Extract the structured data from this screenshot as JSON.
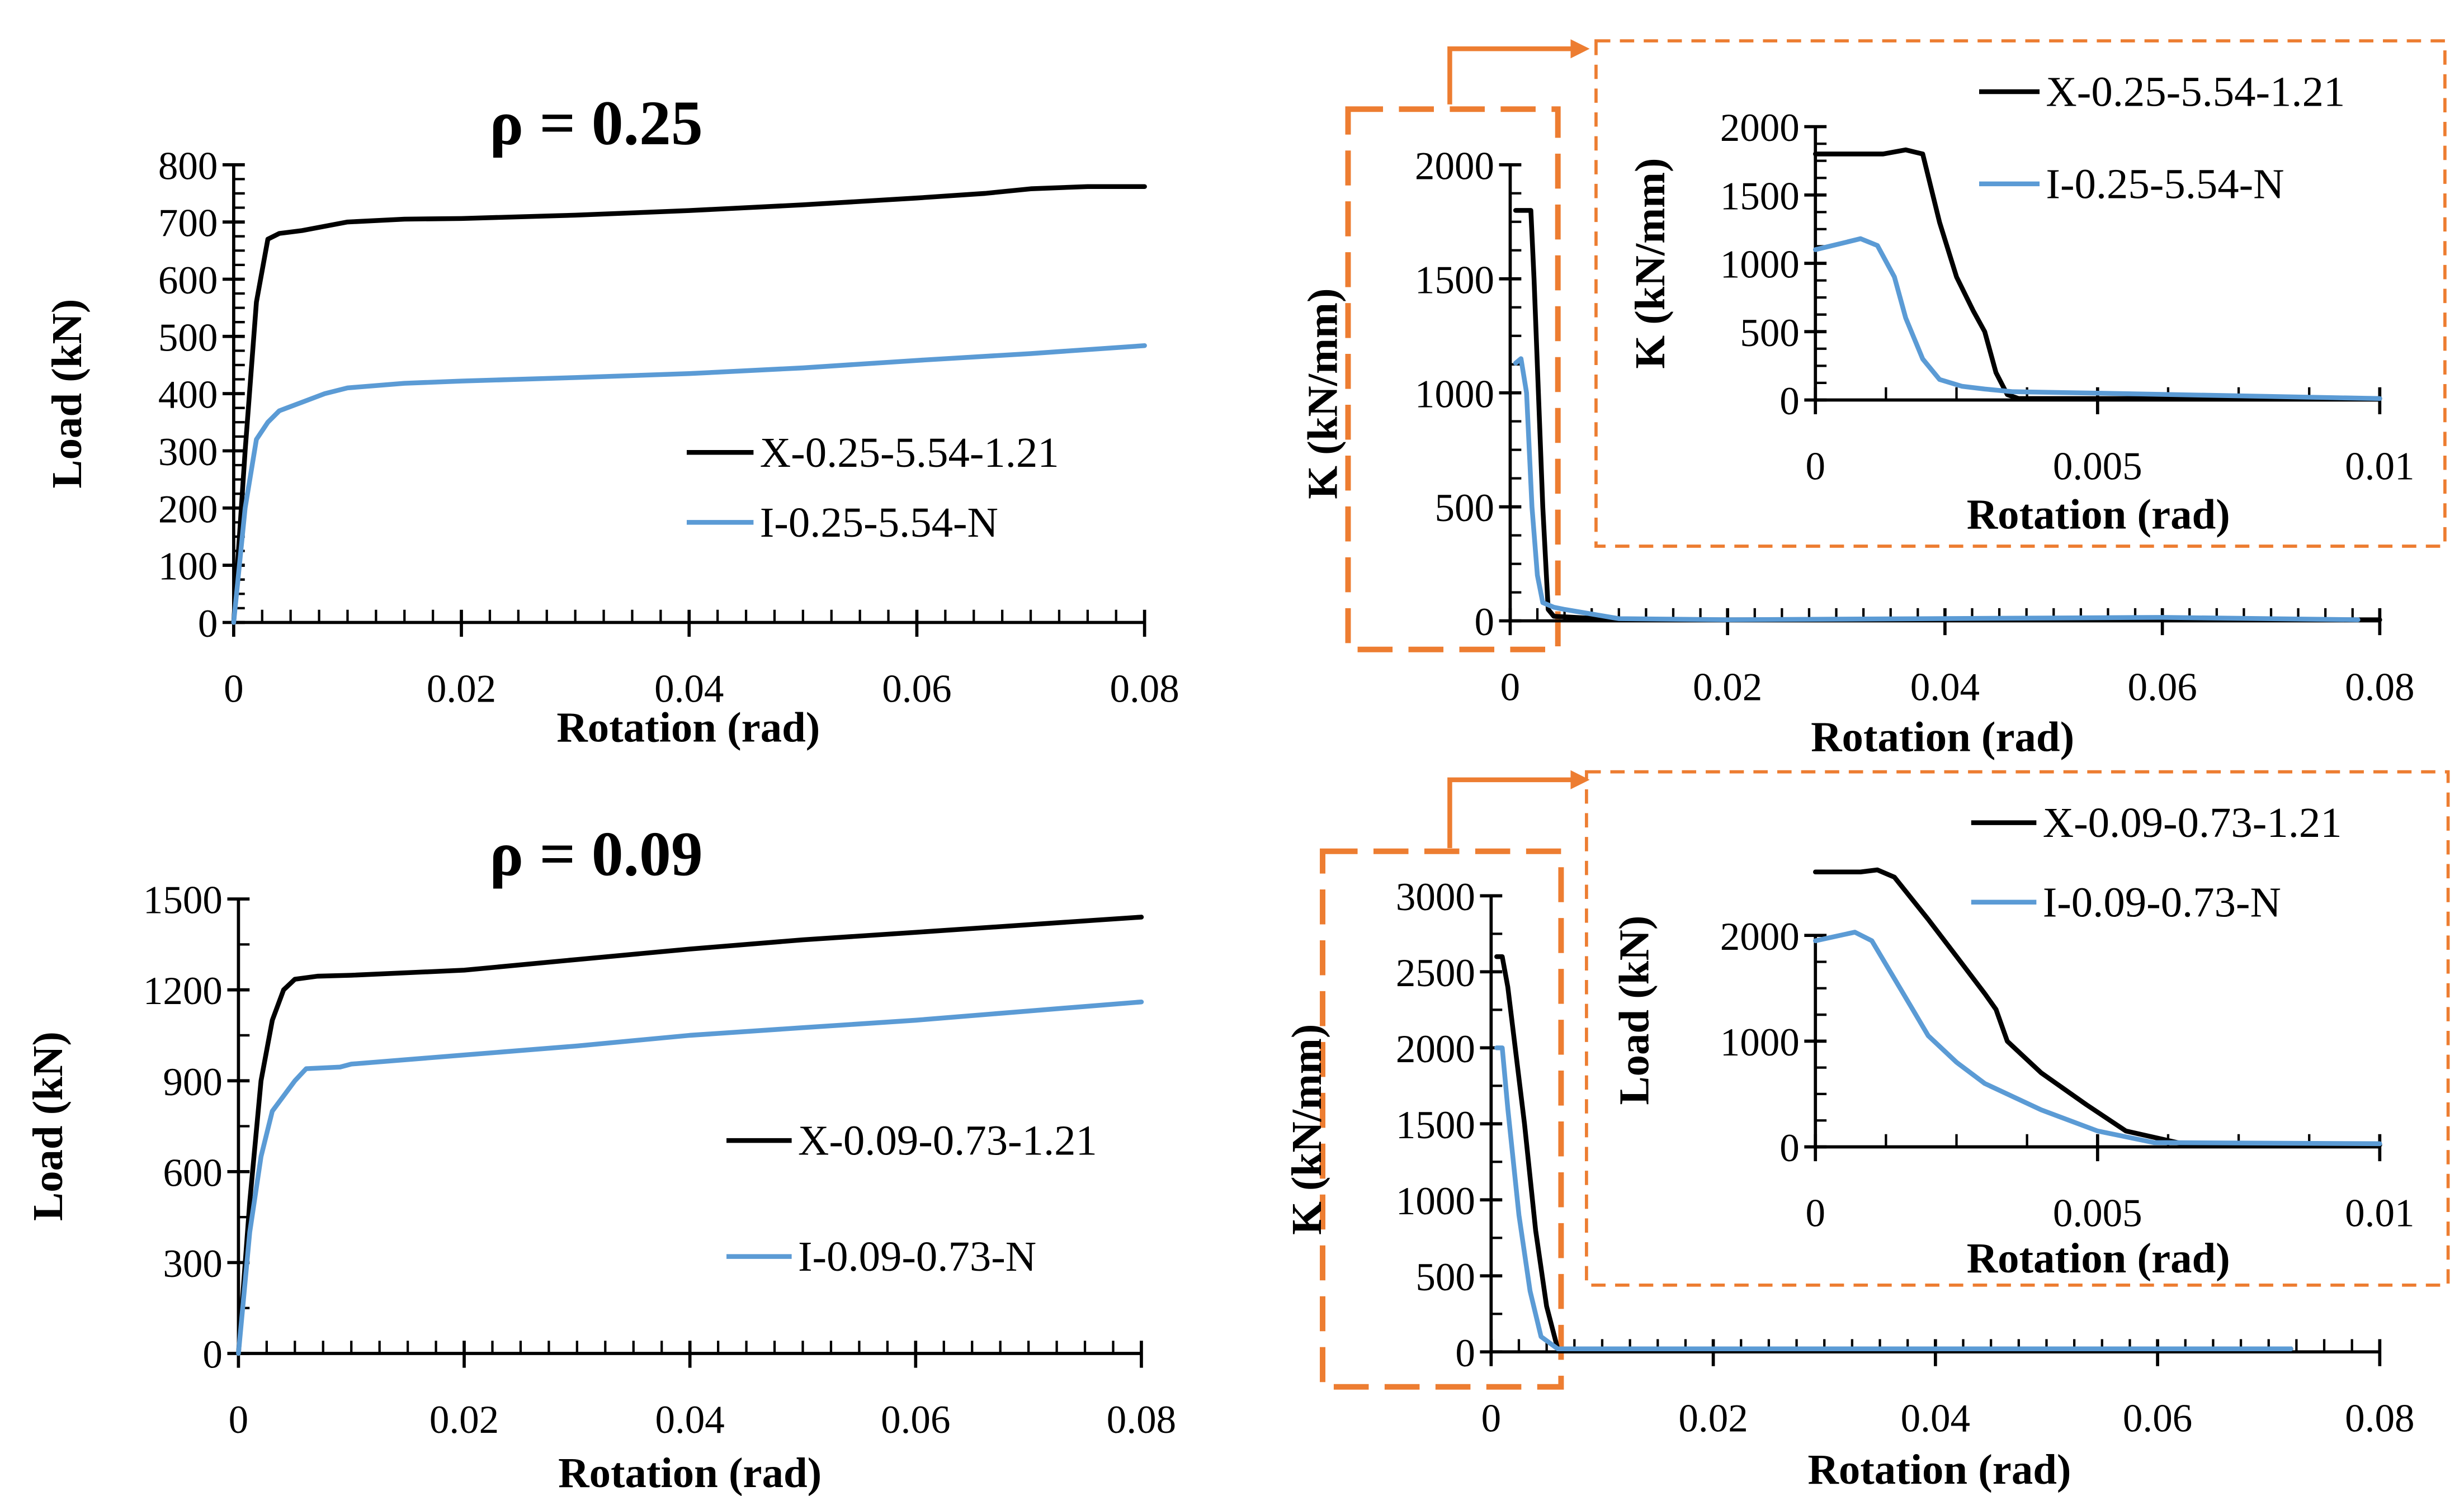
{
  "colors": {
    "black_series": "#000000",
    "blue_series": "#5b9bd5",
    "highlight": "#ed7d31"
  },
  "chart_data": [
    {
      "id": "A",
      "type": "line",
      "title": "ρ = 0.25",
      "xlabel": "Rotation (rad)",
      "ylabel": "Load (kN)",
      "xlim": [
        0,
        0.08
      ],
      "ylim": [
        0,
        800
      ],
      "xticks": [
        0,
        0.02,
        0.04,
        0.06,
        0.08
      ],
      "xtick_labels": [
        "0",
        "0.02",
        "0.04",
        "0.06",
        "0.08"
      ],
      "yticks": [
        0,
        100,
        200,
        300,
        400,
        500,
        600,
        700,
        800
      ],
      "ytick_labels": [
        "0",
        "100",
        "200",
        "300",
        "400",
        "500",
        "600",
        "700",
        "800"
      ],
      "legend": "center-right",
      "series": [
        {
          "name": "X-0.25-5.54-1.21",
          "color": "#000000",
          "x": [
            0,
            0.001,
            0.002,
            0.003,
            0.004,
            0.006,
            0.01,
            0.015,
            0.02,
            0.03,
            0.04,
            0.05,
            0.06,
            0.066,
            0.07,
            0.075,
            0.08
          ],
          "y": [
            0,
            300,
            560,
            670,
            680,
            685,
            700,
            705,
            706,
            712,
            720,
            730,
            742,
            750,
            758,
            762,
            762
          ]
        },
        {
          "name": "I-0.25-5.54-N",
          "color": "#5b9bd5",
          "x": [
            0,
            0.001,
            0.002,
            0.003,
            0.004,
            0.006,
            0.008,
            0.01,
            0.015,
            0.02,
            0.03,
            0.04,
            0.05,
            0.06,
            0.07,
            0.08
          ],
          "y": [
            0,
            200,
            320,
            350,
            370,
            385,
            400,
            410,
            418,
            422,
            428,
            435,
            445,
            458,
            470,
            484
          ]
        }
      ]
    },
    {
      "id": "B",
      "type": "line",
      "xlabel": "Rotation (rad)",
      "ylabel": "K (kN/mm)",
      "xlim": [
        0,
        0.08
      ],
      "ylim": [
        0,
        2000
      ],
      "xticks": [
        0,
        0.02,
        0.04,
        0.06,
        0.08
      ],
      "xtick_labels": [
        "0",
        "0.02",
        "0.04",
        "0.06",
        "0.08"
      ],
      "yticks": [
        0,
        500,
        1000,
        1500,
        2000
      ],
      "ytick_labels": [
        "0",
        "500",
        "1000",
        "1500",
        "2000"
      ],
      "series": [
        {
          "name": "X-0.25-5.54-1.21",
          "color": "#000000",
          "x": [
            0.0005,
            0.0019,
            0.0022,
            0.003,
            0.0035,
            0.004,
            0.01,
            0.08
          ],
          "y": [
            1800,
            1800,
            1500,
            500,
            50,
            20,
            5,
            5
          ]
        },
        {
          "name": "I-0.25-5.54-N",
          "color": "#5b9bd5",
          "x": [
            0.0005,
            0.001,
            0.0015,
            0.002,
            0.0025,
            0.003,
            0.004,
            0.005,
            0.01,
            0.02,
            0.06,
            0.078
          ],
          "y": [
            1130,
            1150,
            1000,
            500,
            200,
            80,
            60,
            50,
            10,
            5,
            15,
            5
          ]
        }
      ]
    },
    {
      "id": "B-inset",
      "type": "line",
      "xlabel": "Rotation (rad)",
      "ylabel": "K (kN/mm)",
      "xlim": [
        0,
        0.01
      ],
      "ylim": [
        0,
        2000
      ],
      "xticks": [
        0,
        0.005,
        0.01
      ],
      "xtick_labels": [
        "0",
        "0.005",
        "0.01"
      ],
      "yticks": [
        0,
        500,
        1000,
        1500,
        2000
      ],
      "ytick_labels": [
        "0",
        "500",
        "1000",
        "1500",
        "2000"
      ],
      "legend": "top-right",
      "series": [
        {
          "name": "X-0.25-5.54-1.21",
          "color": "#000000",
          "x": [
            0,
            0.0012,
            0.0016,
            0.0019,
            0.0022,
            0.0025,
            0.0028,
            0.003,
            0.0032,
            0.0034,
            0.0036,
            0.01
          ],
          "y": [
            1800,
            1800,
            1830,
            1800,
            1300,
            900,
            650,
            500,
            200,
            40,
            10,
            10
          ]
        },
        {
          "name": "I-0.25-5.54-N",
          "color": "#5b9bd5",
          "x": [
            0,
            0.0005,
            0.0008,
            0.0011,
            0.0014,
            0.0016,
            0.0019,
            0.0022,
            0.0026,
            0.003,
            0.0035,
            0.005,
            0.01
          ],
          "y": [
            1100,
            1150,
            1180,
            1130,
            900,
            600,
            300,
            150,
            100,
            80,
            60,
            50,
            10
          ]
        }
      ]
    },
    {
      "id": "C",
      "type": "line",
      "title": "ρ = 0.09",
      "xlabel": "Rotation (rad)",
      "ylabel": "Load (kN)",
      "xlim": [
        0,
        0.08
      ],
      "ylim": [
        0,
        1500
      ],
      "xticks": [
        0,
        0.02,
        0.04,
        0.06,
        0.08
      ],
      "xtick_labels": [
        "0",
        "0.02",
        "0.04",
        "0.06",
        "0.08"
      ],
      "yticks": [
        0,
        300,
        600,
        900,
        1200,
        1500
      ],
      "ytick_labels": [
        "0",
        "300",
        "600",
        "900",
        "1200",
        "1500"
      ],
      "legend": "bottom-right",
      "series": [
        {
          "name": "X-0.09-0.73-1.21",
          "color": "#000000",
          "x": [
            0,
            0.001,
            0.002,
            0.003,
            0.004,
            0.005,
            0.007,
            0.01,
            0.02,
            0.03,
            0.04,
            0.05,
            0.06,
            0.07,
            0.08
          ],
          "y": [
            0,
            500,
            900,
            1100,
            1200,
            1235,
            1245,
            1248,
            1265,
            1300,
            1335,
            1365,
            1390,
            1415,
            1440
          ]
        },
        {
          "name": "I-0.09-0.73-N",
          "color": "#5b9bd5",
          "x": [
            0,
            0.001,
            0.002,
            0.003,
            0.005,
            0.006,
            0.009,
            0.01,
            0.02,
            0.03,
            0.04,
            0.05,
            0.06,
            0.07,
            0.08
          ],
          "y": [
            0,
            400,
            650,
            800,
            900,
            940,
            945,
            955,
            985,
            1015,
            1050,
            1075,
            1100,
            1130,
            1160
          ]
        }
      ]
    },
    {
      "id": "D",
      "type": "line",
      "xlabel": "Rotation (rad)",
      "ylabel": "K (kN/mm)",
      "xlim": [
        0,
        0.08
      ],
      "ylim": [
        0,
        3000
      ],
      "xticks": [
        0,
        0.02,
        0.04,
        0.06,
        0.08
      ],
      "xtick_labels": [
        "0",
        "0.02",
        "0.04",
        "0.06",
        "0.08"
      ],
      "yticks": [
        0,
        500,
        1000,
        1500,
        2000,
        2500,
        3000
      ],
      "ytick_labels": [
        "0",
        "500",
        "1000",
        "1500",
        "2000",
        "2500",
        "3000"
      ],
      "series": [
        {
          "name": "X-0.09-0.73-1.21",
          "color": "#000000",
          "x": [
            0.0005,
            0.001,
            0.0015,
            0.003,
            0.004,
            0.005,
            0.006,
            0.01,
            0.072
          ],
          "y": [
            2600,
            2600,
            2400,
            1500,
            800,
            300,
            20,
            20,
            20
          ]
        },
        {
          "name": "I-0.09-0.73-N",
          "color": "#5b9bd5",
          "x": [
            0.0005,
            0.001,
            0.0015,
            0.0025,
            0.0035,
            0.0045,
            0.006,
            0.072
          ],
          "y": [
            2000,
            2000,
            1600,
            900,
            400,
            100,
            20,
            20
          ]
        }
      ]
    },
    {
      "id": "D-inset",
      "type": "line",
      "xlabel": "Rotation (rad)",
      "ylabel": "Load (kN)",
      "xlim": [
        0,
        0.01
      ],
      "ylim": [
        0,
        2600
      ],
      "xticks": [
        0,
        0.005,
        0.01
      ],
      "xtick_labels": [
        "0",
        "0.005",
        "0.01"
      ],
      "yticks": [
        0,
        1000,
        2000
      ],
      "ytick_labels": [
        "0",
        "1000",
        "2000"
      ],
      "legend": "top-right",
      "series": [
        {
          "name": "X-0.09-0.73-1.21",
          "color": "#000000",
          "x": [
            0,
            0.0008,
            0.0011,
            0.0014,
            0.002,
            0.0025,
            0.003,
            0.0032,
            0.0034,
            0.004,
            0.0048,
            0.0055,
            0.0065,
            0.01
          ],
          "y": [
            2600,
            2600,
            2620,
            2550,
            2150,
            1800,
            1450,
            1300,
            1000,
            700,
            400,
            150,
            30,
            20
          ]
        },
        {
          "name": "I-0.09-0.73-N",
          "color": "#5b9bd5",
          "x": [
            0,
            0.0007,
            0.001,
            0.0015,
            0.002,
            0.0025,
            0.003,
            0.004,
            0.005,
            0.006,
            0.01
          ],
          "y": [
            1950,
            2030,
            1950,
            1500,
            1050,
            800,
            600,
            350,
            150,
            40,
            30
          ]
        }
      ]
    }
  ]
}
